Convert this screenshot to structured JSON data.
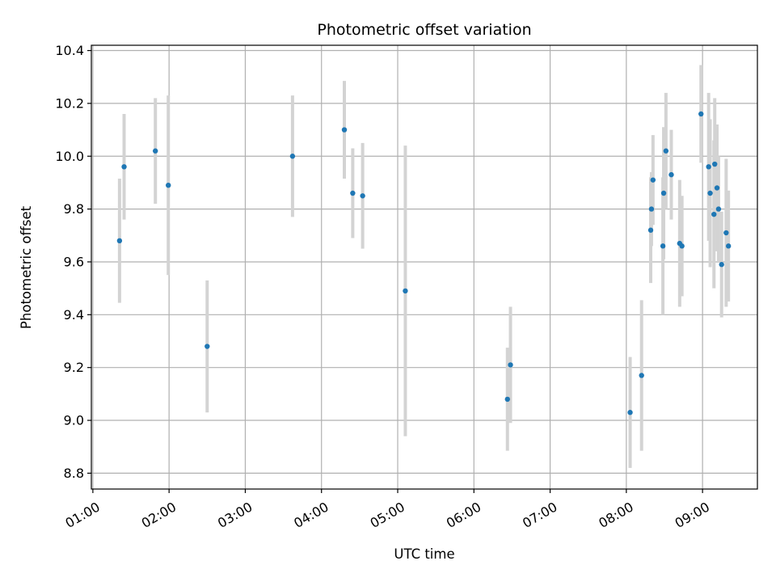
{
  "chart_data": {
    "type": "scatter",
    "title": "Photometric offset variation",
    "xlabel": "UTC time",
    "ylabel": "Photometric offset",
    "x_unit": "hours UTC",
    "xlim": [
      0.98,
      9.72
    ],
    "ylim": [
      8.74,
      10.42
    ],
    "x_ticks": [
      {
        "value": 1,
        "label": "01:00"
      },
      {
        "value": 2,
        "label": "02:00"
      },
      {
        "value": 3,
        "label": "03:00"
      },
      {
        "value": 4,
        "label": "04:00"
      },
      {
        "value": 5,
        "label": "05:00"
      },
      {
        "value": 6,
        "label": "06:00"
      },
      {
        "value": 7,
        "label": "07:00"
      },
      {
        "value": 8,
        "label": "08:00"
      },
      {
        "value": 9,
        "label": "09:00"
      }
    ],
    "y_ticks": [
      {
        "value": 8.8,
        "label": "8.8"
      },
      {
        "value": 9.0,
        "label": "9.0"
      },
      {
        "value": 9.2,
        "label": "9.2"
      },
      {
        "value": 9.4,
        "label": "9.4"
      },
      {
        "value": 9.6,
        "label": "9.6"
      },
      {
        "value": 9.8,
        "label": "9.8"
      },
      {
        "value": 10.0,
        "label": "10.0"
      },
      {
        "value": 10.2,
        "label": "10.2"
      },
      {
        "value": 10.4,
        "label": "10.4"
      }
    ],
    "grid": true,
    "point_color": "#1f77b4",
    "error_bar_color": "#d3d3d3",
    "points": [
      {
        "x": 1.35,
        "y": 9.68,
        "yerr": 0.235
      },
      {
        "x": 1.41,
        "y": 9.96,
        "yerr": 0.2
      },
      {
        "x": 1.82,
        "y": 10.02,
        "yerr": 0.2
      },
      {
        "x": 1.99,
        "y": 9.89,
        "yerr": 0.34
      },
      {
        "x": 2.5,
        "y": 9.28,
        "yerr": 0.25
      },
      {
        "x": 3.62,
        "y": 10.0,
        "yerr": 0.23
      },
      {
        "x": 4.3,
        "y": 10.1,
        "yerr": 0.185
      },
      {
        "x": 4.41,
        "y": 9.86,
        "yerr": 0.17
      },
      {
        "x": 4.54,
        "y": 9.85,
        "yerr": 0.2
      },
      {
        "x": 5.1,
        "y": 9.49,
        "yerr": 0.55
      },
      {
        "x": 6.44,
        "y": 9.08,
        "yerr": 0.195
      },
      {
        "x": 6.48,
        "y": 9.21,
        "yerr": 0.22
      },
      {
        "x": 8.05,
        "y": 9.03,
        "yerr": 0.21
      },
      {
        "x": 8.2,
        "y": 9.17,
        "yerr": 0.285
      },
      {
        "x": 8.32,
        "y": 9.72,
        "yerr": 0.2
      },
      {
        "x": 8.33,
        "y": 9.8,
        "yerr": 0.14
      },
      {
        "x": 8.35,
        "y": 9.91,
        "yerr": 0.17
      },
      {
        "x": 8.48,
        "y": 9.66,
        "yerr": 0.26
      },
      {
        "x": 8.49,
        "y": 9.86,
        "yerr": 0.25
      },
      {
        "x": 8.52,
        "y": 10.02,
        "yerr": 0.22
      },
      {
        "x": 8.59,
        "y": 9.93,
        "yerr": 0.17
      },
      {
        "x": 8.7,
        "y": 9.67,
        "yerr": 0.24
      },
      {
        "x": 8.73,
        "y": 9.66,
        "yerr": 0.19
      },
      {
        "x": 8.98,
        "y": 10.16,
        "yerr": 0.185
      },
      {
        "x": 9.08,
        "y": 9.96,
        "yerr": 0.28
      },
      {
        "x": 9.1,
        "y": 9.86,
        "yerr": 0.28
      },
      {
        "x": 9.15,
        "y": 9.78,
        "yerr": 0.28
      },
      {
        "x": 9.16,
        "y": 9.97,
        "yerr": 0.25
      },
      {
        "x": 9.19,
        "y": 9.88,
        "yerr": 0.24
      },
      {
        "x": 9.21,
        "y": 9.8,
        "yerr": 0.2
      },
      {
        "x": 9.25,
        "y": 9.59,
        "yerr": 0.2
      },
      {
        "x": 9.31,
        "y": 9.71,
        "yerr": 0.28
      },
      {
        "x": 9.34,
        "y": 9.66,
        "yerr": 0.21
      }
    ]
  }
}
